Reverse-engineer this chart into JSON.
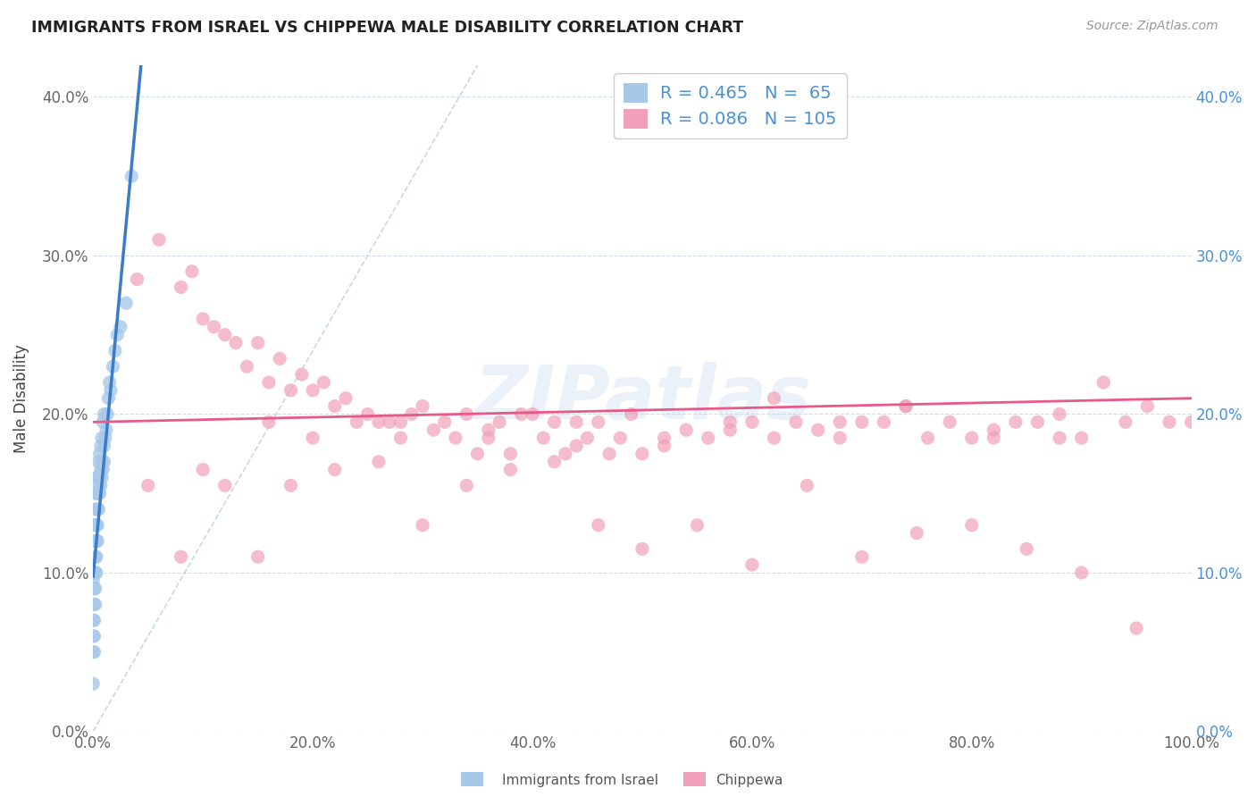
{
  "title": "IMMIGRANTS FROM ISRAEL VS CHIPPEWA MALE DISABILITY CORRELATION CHART",
  "source": "Source: ZipAtlas.com",
  "ylabel": "Male Disability",
  "legend_label1": "Immigrants from Israel",
  "legend_label2": "Chippewa",
  "R1": 0.465,
  "N1": 65,
  "R2": 0.086,
  "N2": 105,
  "color1": "#a8c8e8",
  "color2": "#f0a0b8",
  "line1_color": "#3a7cc8",
  "line2_color": "#e85888",
  "watermark": "ZIPatlas",
  "xlim": [
    0.0,
    1.0
  ],
  "ylim": [
    0.0,
    0.42
  ],
  "scatter1_x": [
    0.0,
    0.0,
    0.0,
    0.0,
    0.0,
    0.0,
    0.0,
    0.0,
    0.001,
    0.001,
    0.001,
    0.001,
    0.001,
    0.001,
    0.001,
    0.001,
    0.001,
    0.002,
    0.002,
    0.002,
    0.002,
    0.002,
    0.002,
    0.002,
    0.002,
    0.003,
    0.003,
    0.003,
    0.003,
    0.003,
    0.003,
    0.004,
    0.004,
    0.004,
    0.004,
    0.005,
    0.005,
    0.005,
    0.005,
    0.006,
    0.006,
    0.006,
    0.007,
    0.007,
    0.007,
    0.008,
    0.008,
    0.008,
    0.009,
    0.009,
    0.01,
    0.01,
    0.01,
    0.011,
    0.012,
    0.013,
    0.014,
    0.015,
    0.016,
    0.018,
    0.02,
    0.022,
    0.025,
    0.03,
    0.035
  ],
  "scatter1_y": [
    0.03,
    0.05,
    0.06,
    0.07,
    0.08,
    0.09,
    0.095,
    0.1,
    0.05,
    0.06,
    0.07,
    0.08,
    0.09,
    0.1,
    0.11,
    0.12,
    0.13,
    0.08,
    0.09,
    0.1,
    0.11,
    0.12,
    0.13,
    0.14,
    0.15,
    0.1,
    0.11,
    0.12,
    0.13,
    0.15,
    0.16,
    0.12,
    0.13,
    0.14,
    0.16,
    0.14,
    0.15,
    0.155,
    0.17,
    0.15,
    0.16,
    0.175,
    0.155,
    0.165,
    0.18,
    0.16,
    0.17,
    0.185,
    0.165,
    0.195,
    0.17,
    0.18,
    0.2,
    0.185,
    0.19,
    0.2,
    0.21,
    0.22,
    0.215,
    0.23,
    0.24,
    0.25,
    0.255,
    0.27,
    0.35
  ],
  "scatter2_x": [
    0.04,
    0.06,
    0.08,
    0.09,
    0.1,
    0.11,
    0.12,
    0.13,
    0.14,
    0.15,
    0.16,
    0.17,
    0.18,
    0.19,
    0.2,
    0.21,
    0.22,
    0.23,
    0.24,
    0.25,
    0.26,
    0.27,
    0.28,
    0.29,
    0.3,
    0.31,
    0.32,
    0.33,
    0.34,
    0.35,
    0.36,
    0.37,
    0.38,
    0.39,
    0.4,
    0.41,
    0.42,
    0.43,
    0.44,
    0.45,
    0.46,
    0.47,
    0.48,
    0.49,
    0.5,
    0.52,
    0.54,
    0.56,
    0.58,
    0.6,
    0.62,
    0.64,
    0.66,
    0.68,
    0.7,
    0.72,
    0.74,
    0.76,
    0.78,
    0.8,
    0.82,
    0.84,
    0.86,
    0.88,
    0.9,
    0.92,
    0.94,
    0.96,
    0.98,
    1.0,
    0.05,
    0.08,
    0.1,
    0.12,
    0.15,
    0.18,
    0.22,
    0.26,
    0.3,
    0.34,
    0.38,
    0.42,
    0.46,
    0.5,
    0.55,
    0.6,
    0.65,
    0.7,
    0.75,
    0.8,
    0.85,
    0.9,
    0.95,
    0.16,
    0.2,
    0.28,
    0.36,
    0.44,
    0.52,
    0.58,
    0.62,
    0.68,
    0.74,
    0.82,
    0.88
  ],
  "scatter2_y": [
    0.285,
    0.31,
    0.28,
    0.29,
    0.26,
    0.255,
    0.25,
    0.245,
    0.23,
    0.245,
    0.22,
    0.235,
    0.215,
    0.225,
    0.215,
    0.22,
    0.205,
    0.21,
    0.195,
    0.2,
    0.195,
    0.195,
    0.185,
    0.2,
    0.205,
    0.19,
    0.195,
    0.185,
    0.2,
    0.175,
    0.19,
    0.195,
    0.175,
    0.2,
    0.2,
    0.185,
    0.195,
    0.175,
    0.18,
    0.185,
    0.195,
    0.175,
    0.185,
    0.2,
    0.175,
    0.185,
    0.19,
    0.185,
    0.19,
    0.195,
    0.185,
    0.195,
    0.19,
    0.185,
    0.195,
    0.195,
    0.205,
    0.185,
    0.195,
    0.185,
    0.19,
    0.195,
    0.195,
    0.185,
    0.185,
    0.22,
    0.195,
    0.205,
    0.195,
    0.195,
    0.155,
    0.11,
    0.165,
    0.155,
    0.11,
    0.155,
    0.165,
    0.17,
    0.13,
    0.155,
    0.165,
    0.17,
    0.13,
    0.115,
    0.13,
    0.105,
    0.155,
    0.11,
    0.125,
    0.13,
    0.115,
    0.1,
    0.065,
    0.195,
    0.185,
    0.195,
    0.185,
    0.195,
    0.18,
    0.195,
    0.21,
    0.195,
    0.205,
    0.185,
    0.2
  ],
  "dashed_line_x": [
    0.0,
    0.35
  ],
  "dashed_line_y": [
    0.0,
    0.42
  ],
  "pink_line_x": [
    0.0,
    1.0
  ],
  "pink_line_y_start": 0.195,
  "pink_line_y_end": 0.21
}
